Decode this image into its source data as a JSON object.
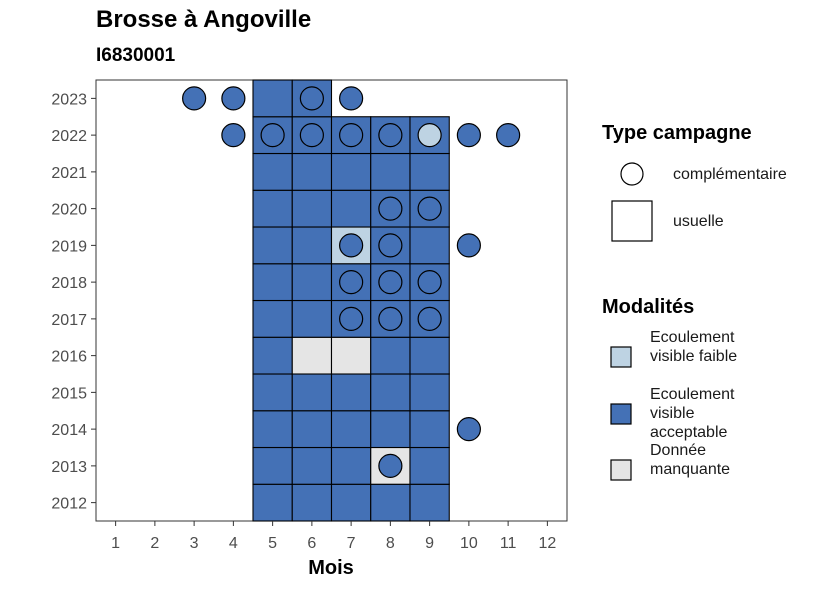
{
  "title": "Brosse à Angoville",
  "subtitle": "I6830001",
  "chart_data": {
    "type": "heatmap",
    "xlabel": "Mois",
    "ylabel": "",
    "x_ticks": [
      1,
      2,
      3,
      4,
      5,
      6,
      7,
      8,
      9,
      10,
      11,
      12
    ],
    "y_ticks": [
      2012,
      2013,
      2014,
      2015,
      2016,
      2017,
      2018,
      2019,
      2020,
      2021,
      2022,
      2023
    ],
    "x_range": [
      0.5,
      12.5
    ],
    "y_range": [
      2011.5,
      2023.5
    ],
    "modalite_colors": {
      "Ecoulement visible faible": "#bed3e3",
      "Ecoulement visible acceptable": "#4471b6",
      "Donnée manquante": "#e5e5e5"
    },
    "tiles_usuelle": [
      {
        "year": 2012,
        "month": 5,
        "m": "Ecoulement visible acceptable"
      },
      {
        "year": 2012,
        "month": 6,
        "m": "Ecoulement visible acceptable"
      },
      {
        "year": 2012,
        "month": 7,
        "m": "Ecoulement visible acceptable"
      },
      {
        "year": 2012,
        "month": 8,
        "m": "Ecoulement visible acceptable"
      },
      {
        "year": 2012,
        "month": 9,
        "m": "Ecoulement visible acceptable"
      },
      {
        "year": 2013,
        "month": 5,
        "m": "Ecoulement visible acceptable"
      },
      {
        "year": 2013,
        "month": 6,
        "m": "Ecoulement visible acceptable"
      },
      {
        "year": 2013,
        "month": 7,
        "m": "Ecoulement visible acceptable"
      },
      {
        "year": 2013,
        "month": 8,
        "m": "Donnée manquante"
      },
      {
        "year": 2013,
        "month": 9,
        "m": "Ecoulement visible acceptable"
      },
      {
        "year": 2014,
        "month": 5,
        "m": "Ecoulement visible acceptable"
      },
      {
        "year": 2014,
        "month": 6,
        "m": "Ecoulement visible acceptable"
      },
      {
        "year": 2014,
        "month": 7,
        "m": "Ecoulement visible acceptable"
      },
      {
        "year": 2014,
        "month": 8,
        "m": "Ecoulement visible acceptable"
      },
      {
        "year": 2014,
        "month": 9,
        "m": "Ecoulement visible acceptable"
      },
      {
        "year": 2015,
        "month": 5,
        "m": "Ecoulement visible acceptable"
      },
      {
        "year": 2015,
        "month": 6,
        "m": "Ecoulement visible acceptable"
      },
      {
        "year": 2015,
        "month": 7,
        "m": "Ecoulement visible acceptable"
      },
      {
        "year": 2015,
        "month": 8,
        "m": "Ecoulement visible acceptable"
      },
      {
        "year": 2015,
        "month": 9,
        "m": "Ecoulement visible acceptable"
      },
      {
        "year": 2016,
        "month": 5,
        "m": "Ecoulement visible acceptable"
      },
      {
        "year": 2016,
        "month": 6,
        "m": "Donnée manquante"
      },
      {
        "year": 2016,
        "month": 7,
        "m": "Donnée manquante"
      },
      {
        "year": 2016,
        "month": 8,
        "m": "Ecoulement visible acceptable"
      },
      {
        "year": 2016,
        "month": 9,
        "m": "Ecoulement visible acceptable"
      },
      {
        "year": 2017,
        "month": 5,
        "m": "Ecoulement visible acceptable"
      },
      {
        "year": 2017,
        "month": 6,
        "m": "Ecoulement visible acceptable"
      },
      {
        "year": 2017,
        "month": 7,
        "m": "Ecoulement visible acceptable"
      },
      {
        "year": 2017,
        "month": 8,
        "m": "Ecoulement visible acceptable"
      },
      {
        "year": 2017,
        "month": 9,
        "m": "Ecoulement visible acceptable"
      },
      {
        "year": 2018,
        "month": 5,
        "m": "Ecoulement visible acceptable"
      },
      {
        "year": 2018,
        "month": 6,
        "m": "Ecoulement visible acceptable"
      },
      {
        "year": 2018,
        "month": 7,
        "m": "Ecoulement visible acceptable"
      },
      {
        "year": 2018,
        "month": 8,
        "m": "Ecoulement visible acceptable"
      },
      {
        "year": 2018,
        "month": 9,
        "m": "Ecoulement visible acceptable"
      },
      {
        "year": 2019,
        "month": 5,
        "m": "Ecoulement visible acceptable"
      },
      {
        "year": 2019,
        "month": 6,
        "m": "Ecoulement visible acceptable"
      },
      {
        "year": 2019,
        "month": 7,
        "m": "Ecoulement visible faible"
      },
      {
        "year": 2019,
        "month": 8,
        "m": "Ecoulement visible acceptable"
      },
      {
        "year": 2019,
        "month": 9,
        "m": "Ecoulement visible acceptable"
      },
      {
        "year": 2020,
        "month": 5,
        "m": "Ecoulement visible acceptable"
      },
      {
        "year": 2020,
        "month": 6,
        "m": "Ecoulement visible acceptable"
      },
      {
        "year": 2020,
        "month": 7,
        "m": "Ecoulement visible acceptable"
      },
      {
        "year": 2020,
        "month": 8,
        "m": "Ecoulement visible acceptable"
      },
      {
        "year": 2020,
        "month": 9,
        "m": "Ecoulement visible acceptable"
      },
      {
        "year": 2021,
        "month": 5,
        "m": "Ecoulement visible acceptable"
      },
      {
        "year": 2021,
        "month": 6,
        "m": "Ecoulement visible acceptable"
      },
      {
        "year": 2021,
        "month": 7,
        "m": "Ecoulement visible acceptable"
      },
      {
        "year": 2021,
        "month": 8,
        "m": "Ecoulement visible acceptable"
      },
      {
        "year": 2021,
        "month": 9,
        "m": "Ecoulement visible acceptable"
      },
      {
        "year": 2022,
        "month": 5,
        "m": "Ecoulement visible acceptable"
      },
      {
        "year": 2022,
        "month": 6,
        "m": "Ecoulement visible acceptable"
      },
      {
        "year": 2022,
        "month": 7,
        "m": "Ecoulement visible acceptable"
      },
      {
        "year": 2022,
        "month": 8,
        "m": "Ecoulement visible acceptable"
      },
      {
        "year": 2022,
        "month": 9,
        "m": "Ecoulement visible acceptable"
      },
      {
        "year": 2023,
        "month": 5,
        "m": "Ecoulement visible acceptable"
      },
      {
        "year": 2023,
        "month": 6,
        "m": "Ecoulement visible acceptable"
      }
    ],
    "points_complementaire": [
      {
        "year": 2023,
        "month": 3,
        "m": "Ecoulement visible acceptable"
      },
      {
        "year": 2023,
        "month": 4,
        "m": "Ecoulement visible acceptable"
      },
      {
        "year": 2023,
        "month": 6,
        "m": "Ecoulement visible acceptable"
      },
      {
        "year": 2023,
        "month": 7,
        "m": "Ecoulement visible acceptable"
      },
      {
        "year": 2022,
        "month": 4,
        "m": "Ecoulement visible acceptable"
      },
      {
        "year": 2022,
        "month": 5,
        "m": "Ecoulement visible acceptable"
      },
      {
        "year": 2022,
        "month": 6,
        "m": "Ecoulement visible acceptable"
      },
      {
        "year": 2022,
        "month": 7,
        "m": "Ecoulement visible acceptable"
      },
      {
        "year": 2022,
        "month": 8,
        "m": "Ecoulement visible acceptable"
      },
      {
        "year": 2022,
        "month": 9,
        "m": "Ecoulement visible faible"
      },
      {
        "year": 2022,
        "month": 10,
        "m": "Ecoulement visible acceptable"
      },
      {
        "year": 2022,
        "month": 11,
        "m": "Ecoulement visible acceptable"
      },
      {
        "year": 2020,
        "month": 8,
        "m": "Ecoulement visible acceptable"
      },
      {
        "year": 2020,
        "month": 9,
        "m": "Ecoulement visible acceptable"
      },
      {
        "year": 2019,
        "month": 7,
        "m": "Ecoulement visible acceptable"
      },
      {
        "year": 2019,
        "month": 8,
        "m": "Ecoulement visible acceptable"
      },
      {
        "year": 2019,
        "month": 10,
        "m": "Ecoulement visible acceptable"
      },
      {
        "year": 2018,
        "month": 7,
        "m": "Ecoulement visible acceptable"
      },
      {
        "year": 2018,
        "month": 8,
        "m": "Ecoulement visible acceptable"
      },
      {
        "year": 2018,
        "month": 9,
        "m": "Ecoulement visible acceptable"
      },
      {
        "year": 2017,
        "month": 7,
        "m": "Ecoulement visible acceptable"
      },
      {
        "year": 2017,
        "month": 8,
        "m": "Ecoulement visible acceptable"
      },
      {
        "year": 2017,
        "month": 9,
        "m": "Ecoulement visible acceptable"
      },
      {
        "year": 2014,
        "month": 10,
        "m": "Ecoulement visible acceptable"
      },
      {
        "year": 2013,
        "month": 8,
        "m": "Ecoulement visible acceptable"
      }
    ]
  },
  "legend": {
    "type_title": "Type campagne",
    "type_items": [
      "complémentaire",
      "usuelle"
    ],
    "mod_title": "Modalités",
    "mod_items": [
      {
        "label": "Ecoulement visible faible",
        "color": "#bed3e3"
      },
      {
        "label": "Ecoulement visible acceptable",
        "color": "#4471b6"
      },
      {
        "label": "Donnée manquante",
        "color": "#e5e5e5"
      }
    ]
  }
}
